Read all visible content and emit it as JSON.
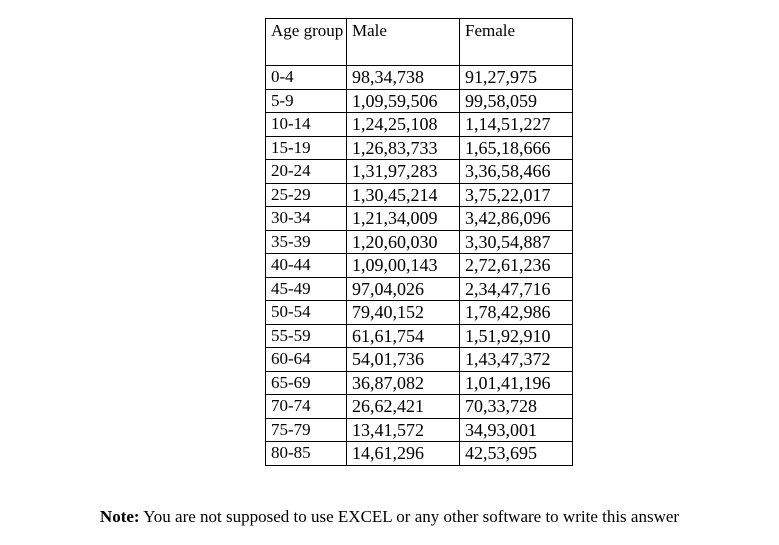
{
  "table": {
    "headers": {
      "age": "Age group",
      "male": "Male",
      "female": "Female"
    },
    "rows": [
      {
        "age": "0-4",
        "male": "98,34,738",
        "female": "91,27,975"
      },
      {
        "age": "5-9",
        "male": "1,09,59,506",
        "female": "99,58,059"
      },
      {
        "age": "10-14",
        "male": "1,24,25,108",
        "female": "1,14,51,227"
      },
      {
        "age": "15-19",
        "male": "1,26,83,733",
        "female": "1,65,18,666"
      },
      {
        "age": "20-24",
        "male": "1,31,97,283",
        "female": "3,36,58,466"
      },
      {
        "age": "25-29",
        "male": "1,30,45,214",
        "female": "3,75,22,017"
      },
      {
        "age": "30-34",
        "male": "1,21,34,009",
        "female": "3,42,86,096"
      },
      {
        "age": "35-39",
        "male": "1,20,60,030",
        "female": "3,30,54,887"
      },
      {
        "age": "40-44",
        "male": "1,09,00,143",
        "female": "2,72,61,236"
      },
      {
        "age": "45-49",
        "male": "97,04,026",
        "female": "2,34,47,716"
      },
      {
        "age": "50-54",
        "male": "79,40,152",
        "female": "1,78,42,986"
      },
      {
        "age": "55-59",
        "male": "61,61,754",
        "female": "1,51,92,910"
      },
      {
        "age": "60-64",
        "male": "54,01,736",
        "female": "1,43,47,372"
      },
      {
        "age": "65-69",
        "male": "36,87,082",
        "female": "1,01,41,196"
      },
      {
        "age": "70-74",
        "male": "26,62,421",
        "female": "70,33,728"
      },
      {
        "age": "75-79",
        "male": "13,41,572",
        "female": "34,93,001"
      },
      {
        "age": "80-85",
        "male": "14,61,296",
        "female": "42,53,695"
      }
    ]
  },
  "note": {
    "label": "Note:",
    "text": " You are not supposed to use EXCEL or any other software to write this answer"
  }
}
